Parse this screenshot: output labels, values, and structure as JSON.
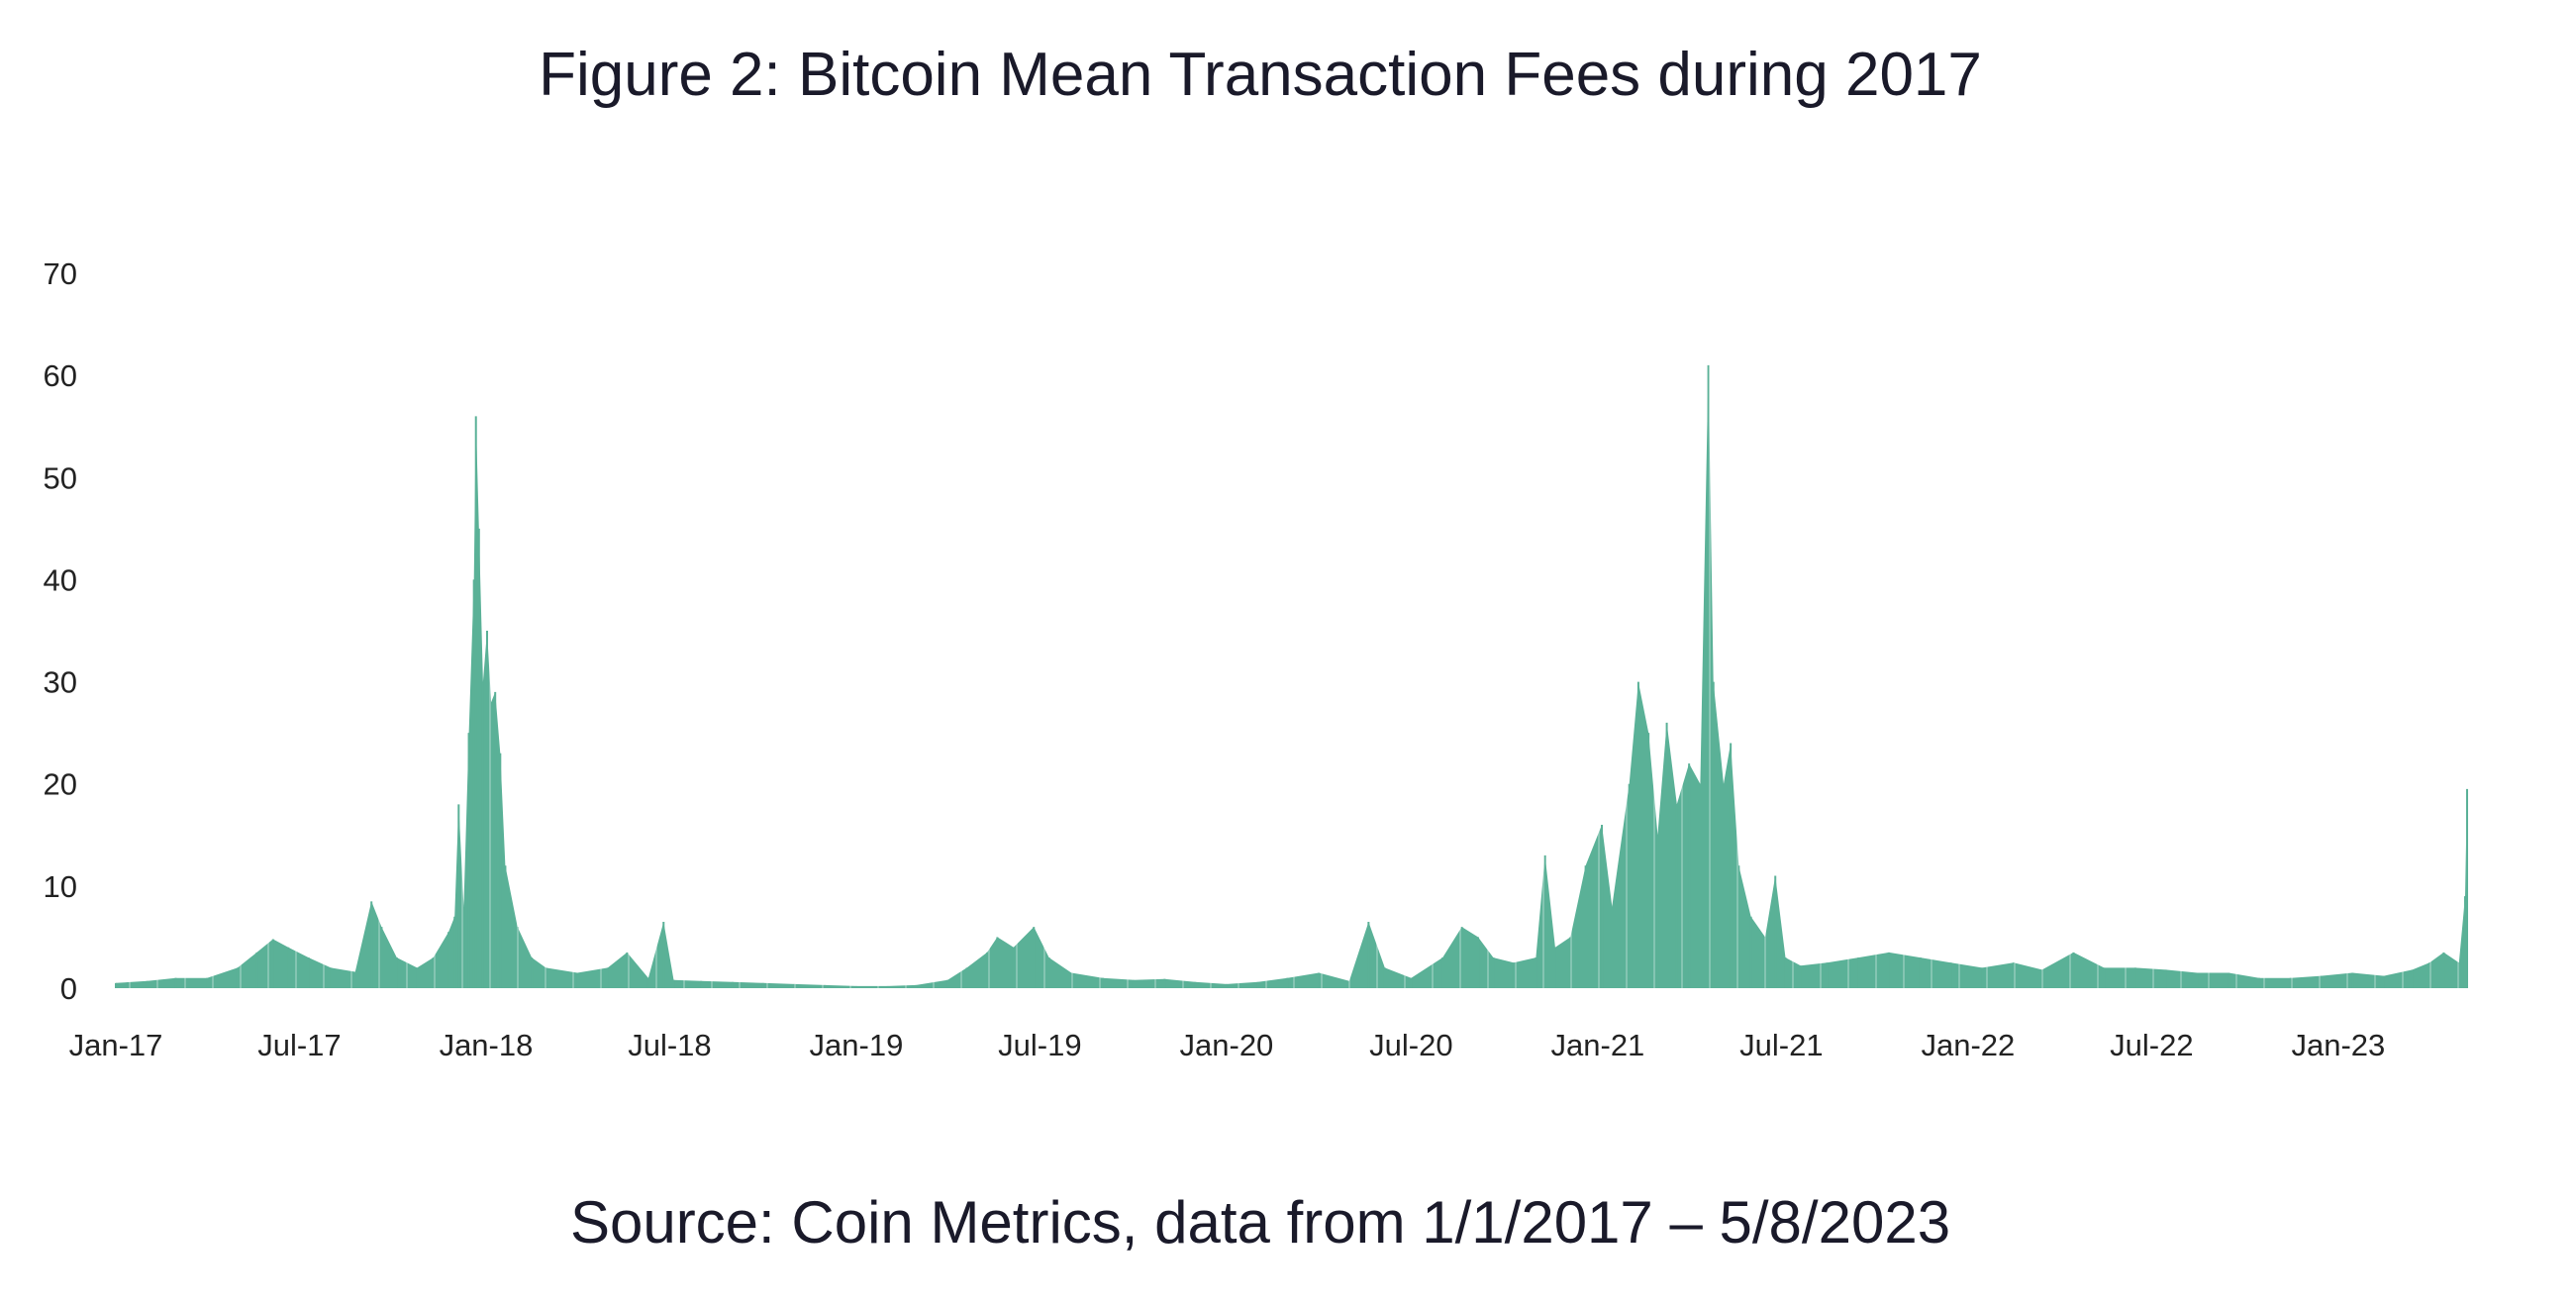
{
  "title": "Figure 2: Bitcoin Mean Transaction Fees during 2017",
  "source": "Source: Coin Metrics, data from 1/1/2017 – 5/8/2023",
  "chart_data": {
    "type": "area",
    "title": "Figure 2: Bitcoin Mean Transaction Fees during 2017",
    "xlabel": "",
    "ylabel": "",
    "ylim": [
      0,
      70
    ],
    "xlim": [
      "2017-01-01",
      "2023-05-08"
    ],
    "grid": false,
    "color": "#5ab197",
    "yticks": [
      0,
      10,
      20,
      30,
      40,
      50,
      60,
      70
    ],
    "xticks": [
      {
        "date": "2017-01-01",
        "label": "Jan-17"
      },
      {
        "date": "2017-07-01",
        "label": "Jul-17"
      },
      {
        "date": "2018-01-01",
        "label": "Jan-18"
      },
      {
        "date": "2018-07-01",
        "label": "Jul-18"
      },
      {
        "date": "2019-01-01",
        "label": "Jan-19"
      },
      {
        "date": "2019-07-01",
        "label": "Jul-19"
      },
      {
        "date": "2020-01-01",
        "label": "Jan-20"
      },
      {
        "date": "2020-07-01",
        "label": "Jul-20"
      },
      {
        "date": "2021-01-01",
        "label": "Jan-21"
      },
      {
        "date": "2021-07-01",
        "label": "Jul-21"
      },
      {
        "date": "2022-01-01",
        "label": "Jan-22"
      },
      {
        "date": "2022-07-01",
        "label": "Jul-22"
      },
      {
        "date": "2023-01-01",
        "label": "Jan-23"
      }
    ],
    "x": [
      "2017-01-01",
      "2017-02-01",
      "2017-03-01",
      "2017-04-01",
      "2017-05-01",
      "2017-05-20",
      "2017-06-05",
      "2017-06-20",
      "2017-07-10",
      "2017-08-01",
      "2017-08-25",
      "2017-09-10",
      "2017-09-20",
      "2017-10-05",
      "2017-10-25",
      "2017-11-10",
      "2017-11-25",
      "2017-12-01",
      "2017-12-05",
      "2017-12-10",
      "2017-12-15",
      "2017-12-20",
      "2017-12-22",
      "2017-12-25",
      "2017-12-29",
      "2018-01-02",
      "2018-01-06",
      "2018-01-10",
      "2018-01-15",
      "2018-01-20",
      "2018-02-01",
      "2018-02-15",
      "2018-03-01",
      "2018-04-01",
      "2018-05-01",
      "2018-05-20",
      "2018-06-10",
      "2018-06-25",
      "2018-07-05",
      "2018-08-01",
      "2018-09-01",
      "2018-10-01",
      "2018-11-01",
      "2018-12-01",
      "2019-01-01",
      "2019-02-01",
      "2019-03-01",
      "2019-04-01",
      "2019-04-20",
      "2019-05-10",
      "2019-05-20",
      "2019-06-05",
      "2019-06-25",
      "2019-07-10",
      "2019-08-01",
      "2019-09-01",
      "2019-10-01",
      "2019-11-01",
      "2019-12-01",
      "2020-01-01",
      "2020-02-01",
      "2020-03-01",
      "2020-04-01",
      "2020-05-01",
      "2020-05-20",
      "2020-06-05",
      "2020-07-01",
      "2020-08-01",
      "2020-08-20",
      "2020-09-05",
      "2020-09-20",
      "2020-10-10",
      "2020-11-01",
      "2020-11-10",
      "2020-11-20",
      "2020-12-05",
      "2020-12-20",
      "2021-01-05",
      "2021-01-15",
      "2021-02-01",
      "2021-02-10",
      "2021-02-20",
      "2021-03-01",
      "2021-03-10",
      "2021-03-20",
      "2021-04-01",
      "2021-04-12",
      "2021-04-20",
      "2021-04-25",
      "2021-05-05",
      "2021-05-12",
      "2021-05-20",
      "2021-06-01",
      "2021-06-15",
      "2021-06-25",
      "2021-07-05",
      "2021-07-20",
      "2021-08-15",
      "2021-09-15",
      "2021-10-15",
      "2021-11-15",
      "2021-12-15",
      "2022-01-15",
      "2022-02-15",
      "2022-03-15",
      "2022-04-15",
      "2022-05-15",
      "2022-06-15",
      "2022-07-15",
      "2022-08-15",
      "2022-09-15",
      "2022-10-15",
      "2022-11-15",
      "2022-12-15",
      "2023-01-15",
      "2023-02-15",
      "2023-03-15",
      "2023-04-01",
      "2023-04-15",
      "2023-04-30",
      "2023-05-06",
      "2023-05-08"
    ],
    "values": [
      0.5,
      0.7,
      1.0,
      1.0,
      2.0,
      3.5,
      4.8,
      4.0,
      3.0,
      2.0,
      1.6,
      8.5,
      6.0,
      3.0,
      2.0,
      3.0,
      5.5,
      7.0,
      18.0,
      8.0,
      25.0,
      40.0,
      56.0,
      45.0,
      30.0,
      35.0,
      28.0,
      29.0,
      23.0,
      12.0,
      6.0,
      3.0,
      2.0,
      1.5,
      2.0,
      3.5,
      1.0,
      6.5,
      0.8,
      0.7,
      0.6,
      0.5,
      0.4,
      0.3,
      0.2,
      0.2,
      0.3,
      0.8,
      2.0,
      3.5,
      5.0,
      4.0,
      6.0,
      3.0,
      1.5,
      1.0,
      0.8,
      0.9,
      0.6,
      0.4,
      0.6,
      1.0,
      1.5,
      0.7,
      6.5,
      2.0,
      1.0,
      3.0,
      6.0,
      5.0,
      3.0,
      2.5,
      3.0,
      13.0,
      4.0,
      5.0,
      12.0,
      16.0,
      8.0,
      20.0,
      30.0,
      25.0,
      15.0,
      26.0,
      18.0,
      22.0,
      20.0,
      61.0,
      30.0,
      20.0,
      24.0,
      12.0,
      7.0,
      5.0,
      11.0,
      3.0,
      2.2,
      2.5,
      3.0,
      3.5,
      3.0,
      2.5,
      2.0,
      2.5,
      1.8,
      3.5,
      2.0,
      2.0,
      1.8,
      1.5,
      1.5,
      1.0,
      1.0,
      1.2,
      1.5,
      1.2,
      1.8,
      2.5,
      3.5,
      2.5,
      9.0,
      19.5
    ]
  }
}
